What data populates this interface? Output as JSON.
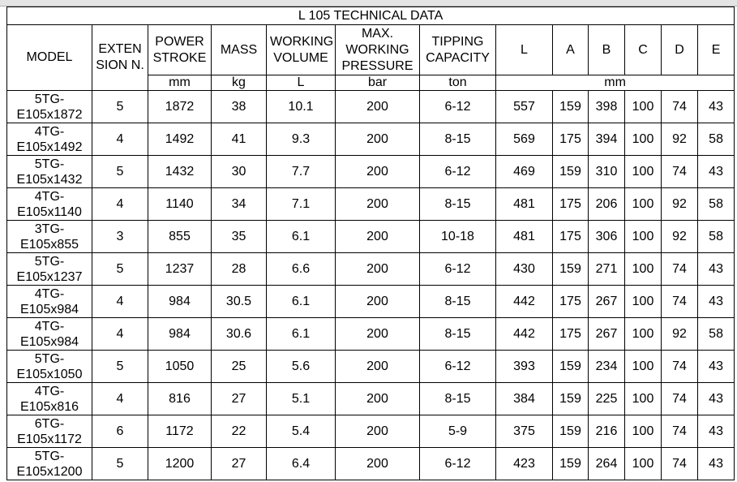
{
  "table": {
    "title": "L 105 TECHNICAL DATA",
    "headers": [
      "MODEL",
      "EXTEN SION N.",
      "POWER STROKE",
      "MASS",
      "WORKING VOLUME",
      "MAX. WORKING PRESSURE",
      "TIPPING CAPACITY",
      "L",
      "A",
      "B",
      "C",
      "D",
      "E"
    ],
    "units": [
      "mm",
      "kg",
      "L",
      "bar",
      "ton",
      "mm"
    ],
    "rows": [
      [
        "5TG-E105x1872",
        5,
        1872,
        38,
        10.1,
        200,
        "6-12",
        557,
        159,
        398,
        100,
        74,
        43
      ],
      [
        "4TG-E105x1492",
        4,
        1492,
        41,
        9.3,
        200,
        "8-15",
        569,
        175,
        394,
        100,
        92,
        58
      ],
      [
        "5TG-E105x1432",
        5,
        1432,
        30,
        7.7,
        200,
        "6-12",
        469,
        159,
        310,
        100,
        74,
        43
      ],
      [
        "4TG-E105x1140",
        4,
        1140,
        34,
        7.1,
        200,
        "8-15",
        481,
        175,
        206,
        100,
        92,
        58
      ],
      [
        "3TG-E105x855",
        3,
        855,
        35,
        6.1,
        200,
        "10-18",
        481,
        175,
        306,
        100,
        92,
        58
      ],
      [
        "5TG-E105x1237",
        5,
        1237,
        28,
        6.6,
        200,
        "6-12",
        430,
        159,
        271,
        100,
        74,
        43
      ],
      [
        "4TG-E105x984",
        4,
        984,
        30.5,
        6.1,
        200,
        "8-15",
        442,
        175,
        267,
        100,
        74,
        43
      ],
      [
        "4TG-E105x984",
        4,
        984,
        30.6,
        6.1,
        200,
        "8-15",
        442,
        175,
        267,
        100,
        92,
        58
      ],
      [
        "5TG-E105x1050",
        5,
        1050,
        25,
        5.6,
        200,
        "6-12",
        393,
        159,
        234,
        100,
        74,
        43
      ],
      [
        "4TG-E105x816",
        4,
        816,
        27,
        5.1,
        200,
        "8-15",
        384,
        159,
        225,
        100,
        74,
        43
      ],
      [
        "6TG-E105x1172",
        6,
        1172,
        22,
        5.4,
        200,
        "5-9",
        375,
        159,
        216,
        100,
        74,
        43
      ],
      [
        "5TG-E105x1200",
        5,
        1200,
        27,
        6.4,
        200,
        "6-12",
        423,
        159,
        264,
        100,
        74,
        43
      ]
    ]
  }
}
